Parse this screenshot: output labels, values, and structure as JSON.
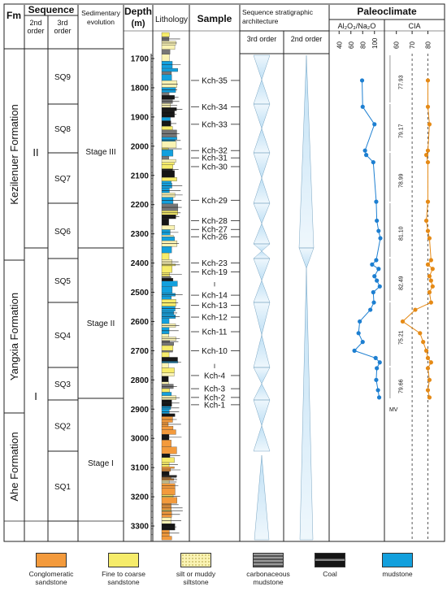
{
  "headers": {
    "fm": "Fm",
    "sequence": "Sequence",
    "order2": [
      "2nd",
      "order"
    ],
    "order3": [
      "3rd",
      "order"
    ],
    "sed": [
      "Sedimentary",
      "evolution"
    ],
    "depth": [
      "Depth",
      "(m)"
    ],
    "lithology": "Lithology",
    "sample": "Sample",
    "strat": [
      "Sequence stratigraphic",
      "architecture"
    ],
    "strat3": "3rd order",
    "strat2": "2nd order",
    "paleo": "Paleoclimate",
    "ratio": "Al₂O₃/Na₂O",
    "cia": "CIA"
  },
  "formations": [
    "Kezilenuer Formation",
    "Yangxia Formation",
    "Ahe Formation"
  ],
  "second_order": [
    "II",
    "I"
  ],
  "sequences": [
    "SQ9",
    "SQ8",
    "SQ7",
    "SQ6",
    "SQ5",
    "SQ4",
    "SQ3",
    "SQ2",
    "SQ1"
  ],
  "stages": [
    "Stage III",
    "Stage II",
    "Stage I"
  ],
  "depth_ticks": [
    1700,
    1800,
    1900,
    2000,
    2100,
    2200,
    2300,
    2400,
    2500,
    2600,
    2700,
    2800,
    2900,
    3000,
    3100,
    3200,
    3300
  ],
  "samples": [
    {
      "name": "Kch-35",
      "depth": 1775
    },
    {
      "name": "Kch-34",
      "depth": 1865
    },
    {
      "name": "Kch-33",
      "depth": 1925
    },
    {
      "name": "Kch-32",
      "depth": 2015
    },
    {
      "name": "Kch-31",
      "depth": 2040
    },
    {
      "name": "Kch-30",
      "depth": 2070
    },
    {
      "name": "Kch-29",
      "depth": 2185
    },
    {
      "name": "Kch-28",
      "depth": 2255
    },
    {
      "name": "Kch-27",
      "depth": 2285
    },
    {
      "name": "Kch-26",
      "depth": 2310
    },
    {
      "name": "Kch-23",
      "depth": 2400
    },
    {
      "name": "Kch-19",
      "depth": 2430
    },
    {
      "name": "Kch-14",
      "depth": 2510
    },
    {
      "name": "Kch-13",
      "depth": 2545
    },
    {
      "name": "Kch-12",
      "depth": 2585
    },
    {
      "name": "Kch-11",
      "depth": 2635
    },
    {
      "name": "Kch-10",
      "depth": 2700
    },
    {
      "name": "Kch-4",
      "depth": 2785
    },
    {
      "name": "Kch-3",
      "depth": 2830
    },
    {
      "name": "Kch-2",
      "depth": 2860
    },
    {
      "name": "Kch-1",
      "depth": 2885
    }
  ],
  "ratio_axis": {
    "ticks": [
      40,
      60,
      80,
      100
    ],
    "min": 30,
    "max": 110
  },
  "cia_axis": {
    "ticks": [
      60,
      70,
      80
    ],
    "min": 55,
    "max": 88,
    "refs": [
      70,
      80
    ]
  },
  "ratio_points": [
    {
      "depth": 1775,
      "value": 79
    },
    {
      "depth": 1865,
      "value": 80
    },
    {
      "depth": 1925,
      "value": 100
    },
    {
      "depth": 2015,
      "value": 84
    },
    {
      "depth": 2030,
      "value": 86
    },
    {
      "depth": 2055,
      "value": 98
    },
    {
      "depth": 2190,
      "value": 103
    },
    {
      "depth": 2255,
      "value": 104
    },
    {
      "depth": 2290,
      "value": 107
    },
    {
      "depth": 2315,
      "value": 110
    },
    {
      "depth": 2390,
      "value": 103
    },
    {
      "depth": 2405,
      "value": 96
    },
    {
      "depth": 2420,
      "value": 107
    },
    {
      "depth": 2445,
      "value": 100
    },
    {
      "depth": 2460,
      "value": 104
    },
    {
      "depth": 2480,
      "value": 109
    },
    {
      "depth": 2500,
      "value": 98
    },
    {
      "depth": 2535,
      "value": 99
    },
    {
      "depth": 2560,
      "value": 93
    },
    {
      "depth": 2600,
      "value": 75
    },
    {
      "depth": 2640,
      "value": 73
    },
    {
      "depth": 2670,
      "value": 80
    },
    {
      "depth": 2700,
      "value": 66
    },
    {
      "depth": 2725,
      "value": 102
    },
    {
      "depth": 2740,
      "value": 109
    },
    {
      "depth": 2760,
      "value": 104
    },
    {
      "depth": 2800,
      "value": 103
    },
    {
      "depth": 2835,
      "value": 106
    },
    {
      "depth": 2860,
      "value": 108
    }
  ],
  "cia_points": [
    {
      "depth": 1775,
      "value": 80
    },
    {
      "depth": 1865,
      "value": 80
    },
    {
      "depth": 1925,
      "value": 81
    },
    {
      "depth": 2015,
      "value": 80
    },
    {
      "depth": 2030,
      "value": 79
    },
    {
      "depth": 2055,
      "value": 80
    },
    {
      "depth": 2190,
      "value": 80
    },
    {
      "depth": 2255,
      "value": 79
    },
    {
      "depth": 2290,
      "value": 80
    },
    {
      "depth": 2315,
      "value": 81
    },
    {
      "depth": 2390,
      "value": 82
    },
    {
      "depth": 2405,
      "value": 80
    },
    {
      "depth": 2420,
      "value": 83
    },
    {
      "depth": 2445,
      "value": 81
    },
    {
      "depth": 2460,
      "value": 82
    },
    {
      "depth": 2480,
      "value": 83
    },
    {
      "depth": 2500,
      "value": 81
    },
    {
      "depth": 2535,
      "value": 82
    },
    {
      "depth": 2560,
      "value": 72
    },
    {
      "depth": 2600,
      "value": 64
    },
    {
      "depth": 2640,
      "value": 75
    },
    {
      "depth": 2670,
      "value": 77
    },
    {
      "depth": 2700,
      "value": 79
    },
    {
      "depth": 2725,
      "value": 80
    },
    {
      "depth": 2740,
      "value": 82
    },
    {
      "depth": 2760,
      "value": 80
    },
    {
      "depth": 2800,
      "value": 81
    },
    {
      "depth": 2835,
      "value": 80
    },
    {
      "depth": 2860,
      "value": 81
    }
  ],
  "cia_means": [
    "77.93",
    "79.17",
    "78.99",
    "81.10",
    "82.49",
    "75.21",
    "79.66"
  ],
  "mv_label": "MV",
  "legend": [
    {
      "label": [
        "Conglomeratic",
        "sandstone"
      ],
      "color": "#f39a3c",
      "icon": "conglomerate-swatch"
    },
    {
      "label": [
        "Fine to coarse",
        "sandstone"
      ],
      "color": "#f6ec6a",
      "icon": "sandstone-swatch"
    },
    {
      "label": [
        "silt or muddy",
        "siltstone"
      ],
      "color": "#faf3b4",
      "icon": "siltstone-swatch"
    },
    {
      "label": [
        "carbonaceous",
        "mudstone"
      ],
      "color": "#777777",
      "icon": "carbonaceous-swatch"
    },
    {
      "label": [
        "Coal"
      ],
      "color": "#151515",
      "icon": "coal-swatch"
    },
    {
      "label": [
        "mudstone"
      ],
      "color": "#13a0dd",
      "icon": "mudstone-swatch"
    }
  ],
  "colors": {
    "ratio": "#1d7fd1",
    "cia": "#e58a16",
    "triangle": "#bfe0f5"
  }
}
